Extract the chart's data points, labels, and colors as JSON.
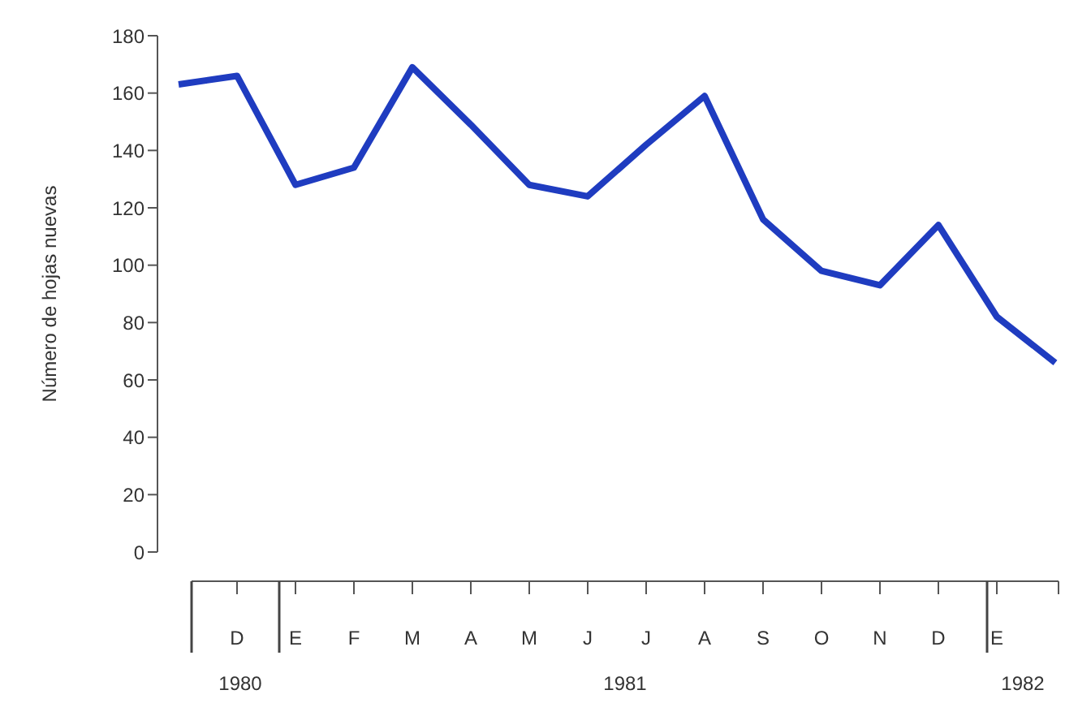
{
  "chart_data": {
    "type": "line",
    "ylabel": "Número de hojas nuevas",
    "categories": [
      null,
      "D",
      "E",
      "F",
      "M",
      "A",
      "M",
      "J",
      "J",
      "A",
      "S",
      "O",
      "N",
      "D",
      "E",
      null
    ],
    "series": [
      {
        "color": "#1f3cc0",
        "values": [
          163,
          166,
          128,
          134,
          169,
          149,
          128,
          124,
          142,
          159,
          116,
          98,
          93,
          114,
          82,
          66
        ]
      }
    ],
    "ylim": [
      0,
      180
    ],
    "yticks": [
      0,
      20,
      40,
      60,
      80,
      100,
      120,
      140,
      160,
      180
    ],
    "marker": "none",
    "line_style": "solid",
    "grid": false,
    "annotations": [
      "1980",
      "1981",
      "1982"
    ]
  }
}
